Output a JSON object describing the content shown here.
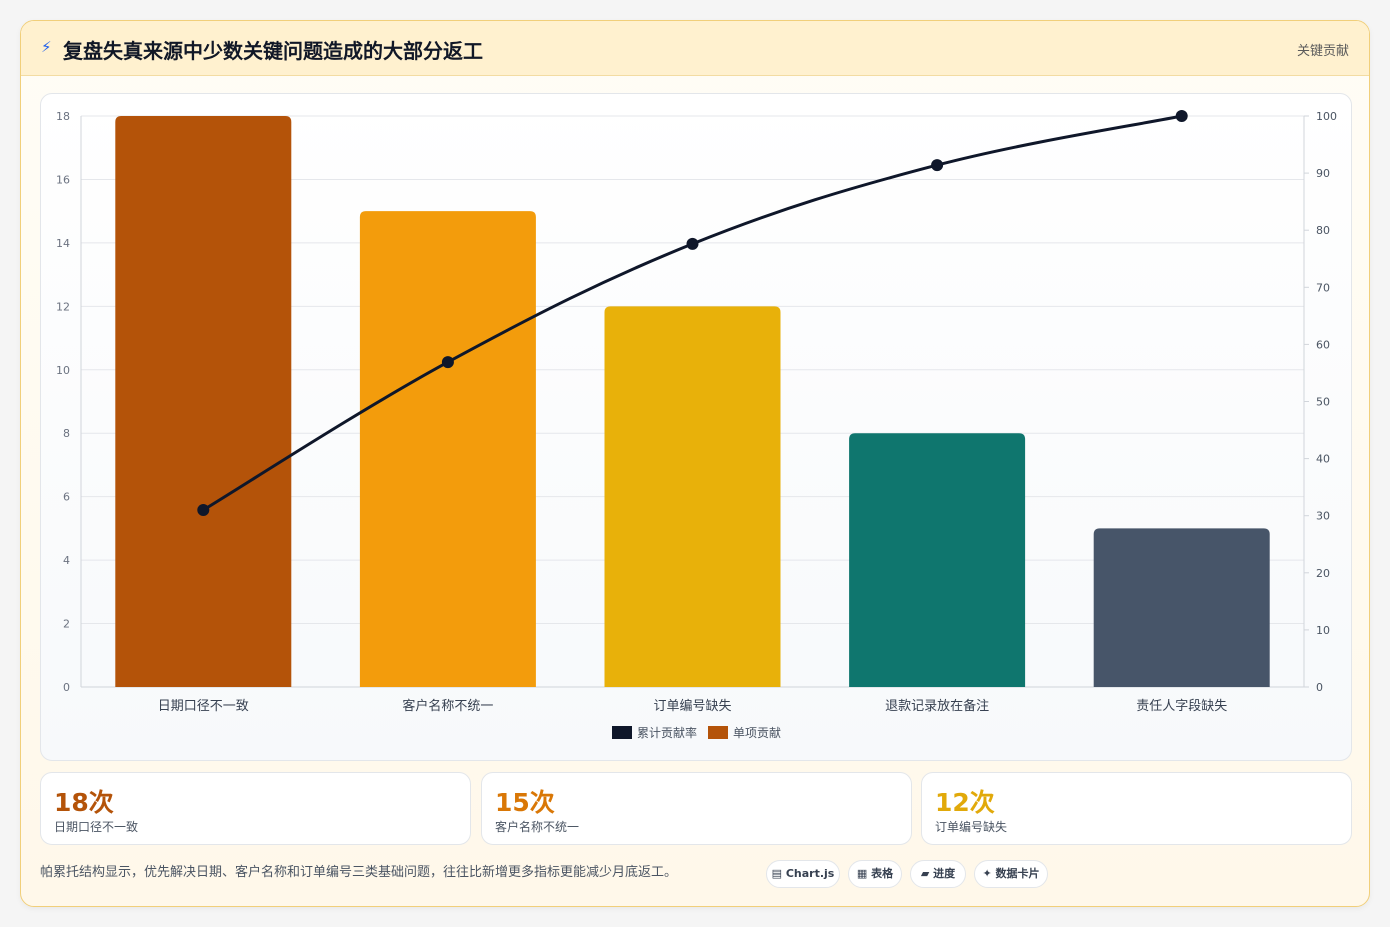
{
  "header": {
    "icon": "bolt-icon",
    "title": "复盘失真来源中少数关键问题造成的大部分返工",
    "badge": "关键贡献"
  },
  "chart_data": {
    "type": "bar",
    "categories": [
      "日期口径不一致",
      "客户名称不统一",
      "订单编号缺失",
      "退款记录放在备注",
      "责任人字段缺失"
    ],
    "series": [
      {
        "name": "单项贡献",
        "type": "bar",
        "axis": "left",
        "values": [
          18,
          15,
          12,
          8,
          5
        ],
        "colors": [
          "#b45309",
          "#f39c0c",
          "#e8b10a",
          "#0f766e",
          "#475569"
        ]
      },
      {
        "name": "累计贡献率",
        "type": "line",
        "axis": "right",
        "values": [
          31.0,
          56.9,
          77.6,
          91.4,
          100
        ],
        "color": "#0f172a"
      }
    ],
    "ylim": [
      0,
      18
    ],
    "y_ticks": [
      0,
      2,
      4,
      6,
      8,
      10,
      12,
      14,
      16,
      18
    ],
    "y2lim": [
      0,
      100
    ],
    "y2_ticks": [
      0,
      10,
      20,
      30,
      40,
      50,
      60,
      70,
      80,
      90,
      100
    ],
    "legend": [
      {
        "label": "累计贡献率",
        "color": "#0f172a"
      },
      {
        "label": "单项贡献",
        "color": "#b45309"
      }
    ],
    "legend_position": "bottom",
    "grid": true
  },
  "stats": [
    {
      "value": "18次",
      "label": "日期口径不一致",
      "color": "#b45309"
    },
    {
      "value": "15次",
      "label": "客户名称不统一",
      "color": "#d97706"
    },
    {
      "value": "12次",
      "label": "订单编号缺失",
      "color": "#e1a90a"
    }
  ],
  "footer": {
    "note": "帕累托结构显示，优先解决日期、客户名称和订单编号三类基础问题，往往比新增更多指标更能减少月底返工。",
    "chips": [
      {
        "icon": "chart-icon",
        "label": "▤ Chart.js"
      },
      {
        "icon": "table-icon",
        "label": "▦ 表格"
      },
      {
        "icon": "progress-icon",
        "label": "▰ 进度"
      },
      {
        "icon": "card-icon",
        "label": "✦ 数据卡片"
      }
    ]
  }
}
